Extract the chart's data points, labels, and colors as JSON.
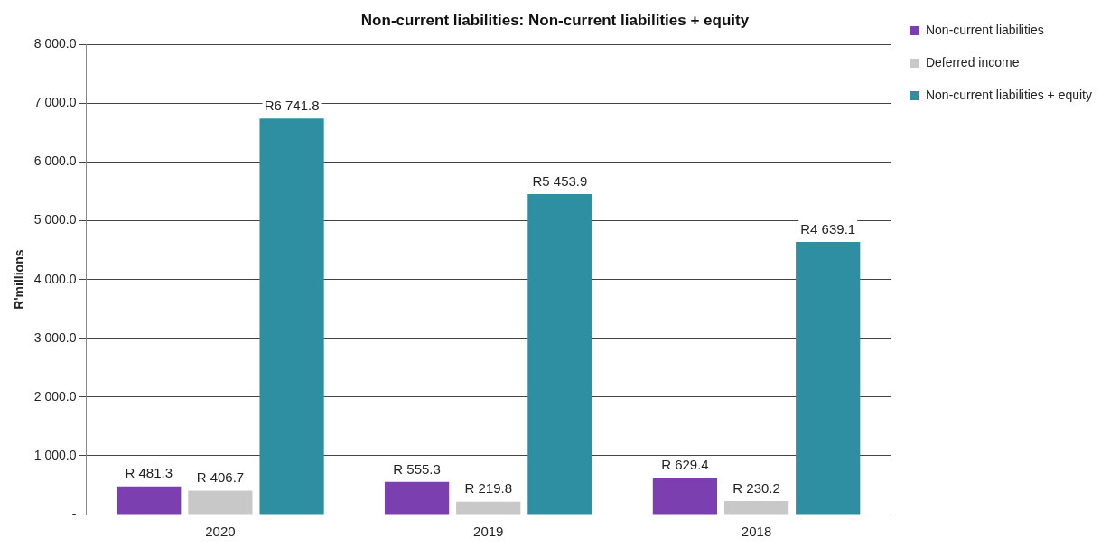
{
  "chart_data": {
    "type": "bar",
    "title": "Non-current liabilities: Non-current liabilities + equity",
    "ylabel": "R'millions",
    "categories": [
      "2020",
      "2019",
      "2018"
    ],
    "series": [
      {
        "name": "Non-current liabilities",
        "color": "#7b3fb0",
        "values": [
          481.3,
          555.3,
          629.4
        ],
        "value_labels": [
          "R 481.3",
          "R 555.3",
          "R 629.4"
        ]
      },
      {
        "name": "Deferred income",
        "color": "#c8c8c8",
        "values": [
          406.7,
          219.8,
          230.2
        ],
        "value_labels": [
          "R 406.7",
          "R 219.8",
          "R 230.2"
        ]
      },
      {
        "name": "Non-current liabilities + equity",
        "color": "#2e8fa3",
        "values": [
          6741.8,
          5453.9,
          4639.1
        ],
        "value_labels": [
          "R6 741.8",
          "R5 453.9",
          "R4 639.1"
        ]
      }
    ],
    "ylim": [
      0,
      8000
    ],
    "yticks": [
      {
        "value": 0,
        "label": "-"
      },
      {
        "value": 1000,
        "label": "1 000.0"
      },
      {
        "value": 2000,
        "label": "2 000.0"
      },
      {
        "value": 3000,
        "label": "3 000.0"
      },
      {
        "value": 4000,
        "label": "4 000.0"
      },
      {
        "value": 5000,
        "label": "5 000.0"
      },
      {
        "value": 6000,
        "label": "6 000.0"
      },
      {
        "value": 7000,
        "label": "7 000.0"
      },
      {
        "value": 8000,
        "label": "8 000.0"
      }
    ],
    "grid": "y",
    "legend": "right"
  }
}
